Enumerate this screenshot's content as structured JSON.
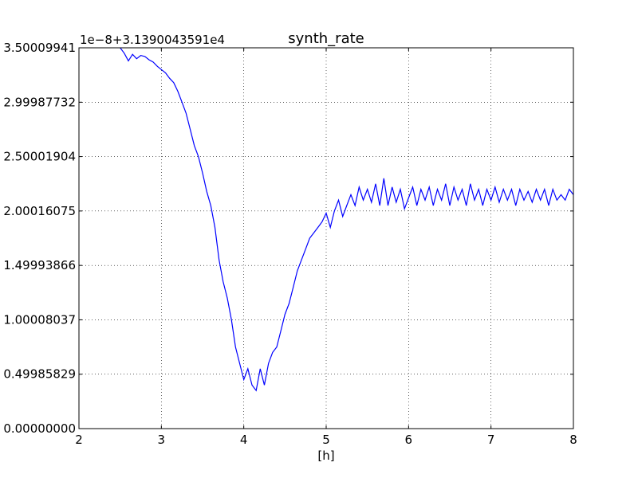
{
  "chart_data": {
    "type": "line",
    "title": "synth_rate",
    "xlabel": "[h]",
    "ylabel": "",
    "offset_text": "1e−8+3.1390043591e4",
    "xlim": [
      2,
      8
    ],
    "ylim": [
      0.0,
      3.50009941
    ],
    "grid": true,
    "x_ticks": [
      2,
      3,
      4,
      5,
      6,
      7,
      8
    ],
    "x_tick_labels": [
      "2",
      "3",
      "4",
      "5",
      "6",
      "7",
      "8"
    ],
    "y_ticks": [
      0.0,
      0.49985829,
      1.00008037,
      1.49993866,
      2.00016075,
      2.50001904,
      2.99987732,
      3.50009941
    ],
    "y_tick_labels": [
      "0.00000000",
      "0.49985829",
      "1.00008037",
      "1.49993866",
      "2.00016075",
      "2.50001904",
      "2.99987732",
      "3.50009941"
    ],
    "line_color": "#0000ff",
    "series": [
      {
        "x": [
          2.5,
          2.55,
          2.6,
          2.65,
          2.7,
          2.75,
          2.8,
          2.85,
          2.9,
          2.95,
          3.0,
          3.05,
          3.1,
          3.15,
          3.2,
          3.25,
          3.3,
          3.35,
          3.4,
          3.45,
          3.5,
          3.55,
          3.6,
          3.65,
          3.7,
          3.75,
          3.8,
          3.85,
          3.9,
          3.95,
          4.0,
          4.05,
          4.1,
          4.15,
          4.2,
          4.25,
          4.3,
          4.35,
          4.4,
          4.45,
          4.5,
          4.55,
          4.6,
          4.65,
          4.7,
          4.75,
          4.8,
          4.85,
          4.9,
          4.95,
          5.0,
          5.05,
          5.1,
          5.15,
          5.2,
          5.25,
          5.3,
          5.35,
          5.4,
          5.45,
          5.5,
          5.55,
          5.6,
          5.65,
          5.7,
          5.75,
          5.8,
          5.85,
          5.9,
          5.95,
          6.0,
          6.05,
          6.1,
          6.15,
          6.2,
          6.25,
          6.3,
          6.35,
          6.4,
          6.45,
          6.5,
          6.55,
          6.6,
          6.65,
          6.7,
          6.75,
          6.8,
          6.85,
          6.9,
          6.95,
          7.0,
          7.05,
          7.1,
          7.15,
          7.2,
          7.25,
          7.3,
          7.35,
          7.4,
          7.45,
          7.5,
          7.55,
          7.6,
          7.65,
          7.7,
          7.75,
          7.8,
          7.85,
          7.9,
          7.95,
          8.0
        ],
        "values": [
          3.5,
          3.45,
          3.38,
          3.44,
          3.4,
          3.43,
          3.42,
          3.39,
          3.37,
          3.33,
          3.3,
          3.27,
          3.22,
          3.18,
          3.1,
          3.0,
          2.9,
          2.75,
          2.6,
          2.5,
          2.35,
          2.18,
          2.05,
          1.85,
          1.55,
          1.35,
          1.2,
          1.0,
          0.75,
          0.6,
          0.45,
          0.55,
          0.4,
          0.35,
          0.55,
          0.4,
          0.6,
          0.7,
          0.75,
          0.9,
          1.05,
          1.15,
          1.3,
          1.45,
          1.55,
          1.65,
          1.75,
          1.8,
          1.85,
          1.9,
          1.98,
          1.85,
          2.0,
          2.1,
          1.95,
          2.05,
          2.15,
          2.05,
          2.22,
          2.1,
          2.2,
          2.08,
          2.25,
          2.05,
          2.3,
          2.05,
          2.22,
          2.08,
          2.2,
          2.02,
          2.12,
          2.22,
          2.05,
          2.2,
          2.1,
          2.22,
          2.05,
          2.2,
          2.1,
          2.25,
          2.05,
          2.22,
          2.1,
          2.2,
          2.05,
          2.25,
          2.1,
          2.2,
          2.05,
          2.2,
          2.1,
          2.22,
          2.08,
          2.2,
          2.1,
          2.2,
          2.05,
          2.2,
          2.1,
          2.18,
          2.08,
          2.2,
          2.1,
          2.2,
          2.05,
          2.2,
          2.1,
          2.15,
          2.1,
          2.2,
          2.15
        ]
      }
    ]
  }
}
